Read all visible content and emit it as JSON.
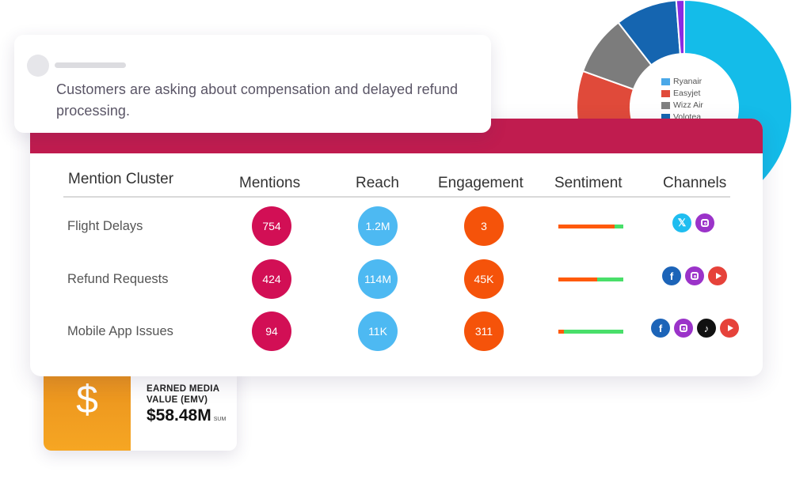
{
  "comment": {
    "text": "Customers are asking about compensation and delayed refund processing."
  },
  "donut": {
    "legend": [
      {
        "label": "Ryanair",
        "color": "#4aa8e8"
      },
      {
        "label": "Easyjet",
        "color": "#e04a3a"
      },
      {
        "label": "Wizz Air",
        "color": "#808080"
      },
      {
        "label": "Volotea",
        "color": "#1565b0"
      }
    ],
    "segments": [
      {
        "color": "#14bce9",
        "fraction": 0.555
      },
      {
        "color": "#14bce9",
        "fraction": 0.155
      },
      {
        "color": "#e04a3a",
        "fraction": 0.095
      },
      {
        "color": "#7c7c7c",
        "fraction": 0.09
      },
      {
        "color": "#1565b0",
        "fraction": 0.093
      },
      {
        "color": "#8a2be2",
        "fraction": 0.012
      }
    ]
  },
  "table": {
    "headers": {
      "cluster": "Mention Cluster",
      "mentions": "Mentions",
      "reach": "Reach",
      "engagement": "Engagement",
      "sentiment": "Sentiment",
      "channels": "Channels"
    },
    "rows": [
      {
        "name": "Flight Delays",
        "mentions": "754",
        "reach": "1.2M",
        "engagement": "3",
        "sentiment_negative": 0.87,
        "channels": [
          "x",
          "instagram"
        ]
      },
      {
        "name": "Refund Requests",
        "mentions": "424",
        "reach": "114M",
        "engagement": "45K",
        "sentiment_negative": 0.6,
        "channels": [
          "facebook",
          "instagram",
          "youtube"
        ]
      },
      {
        "name": "Mobile App Issues",
        "mentions": "94",
        "reach": "11K",
        "engagement": "311",
        "sentiment_negative": 0.09,
        "channels": [
          "facebook",
          "instagram",
          "tiktok",
          "youtube"
        ]
      }
    ]
  },
  "emv": {
    "label_line1": "EARNED MEDIA",
    "label_line2": "VALUE (EMV)",
    "value": "$58.48M",
    "suffix": "SUM",
    "icon": "$"
  }
}
